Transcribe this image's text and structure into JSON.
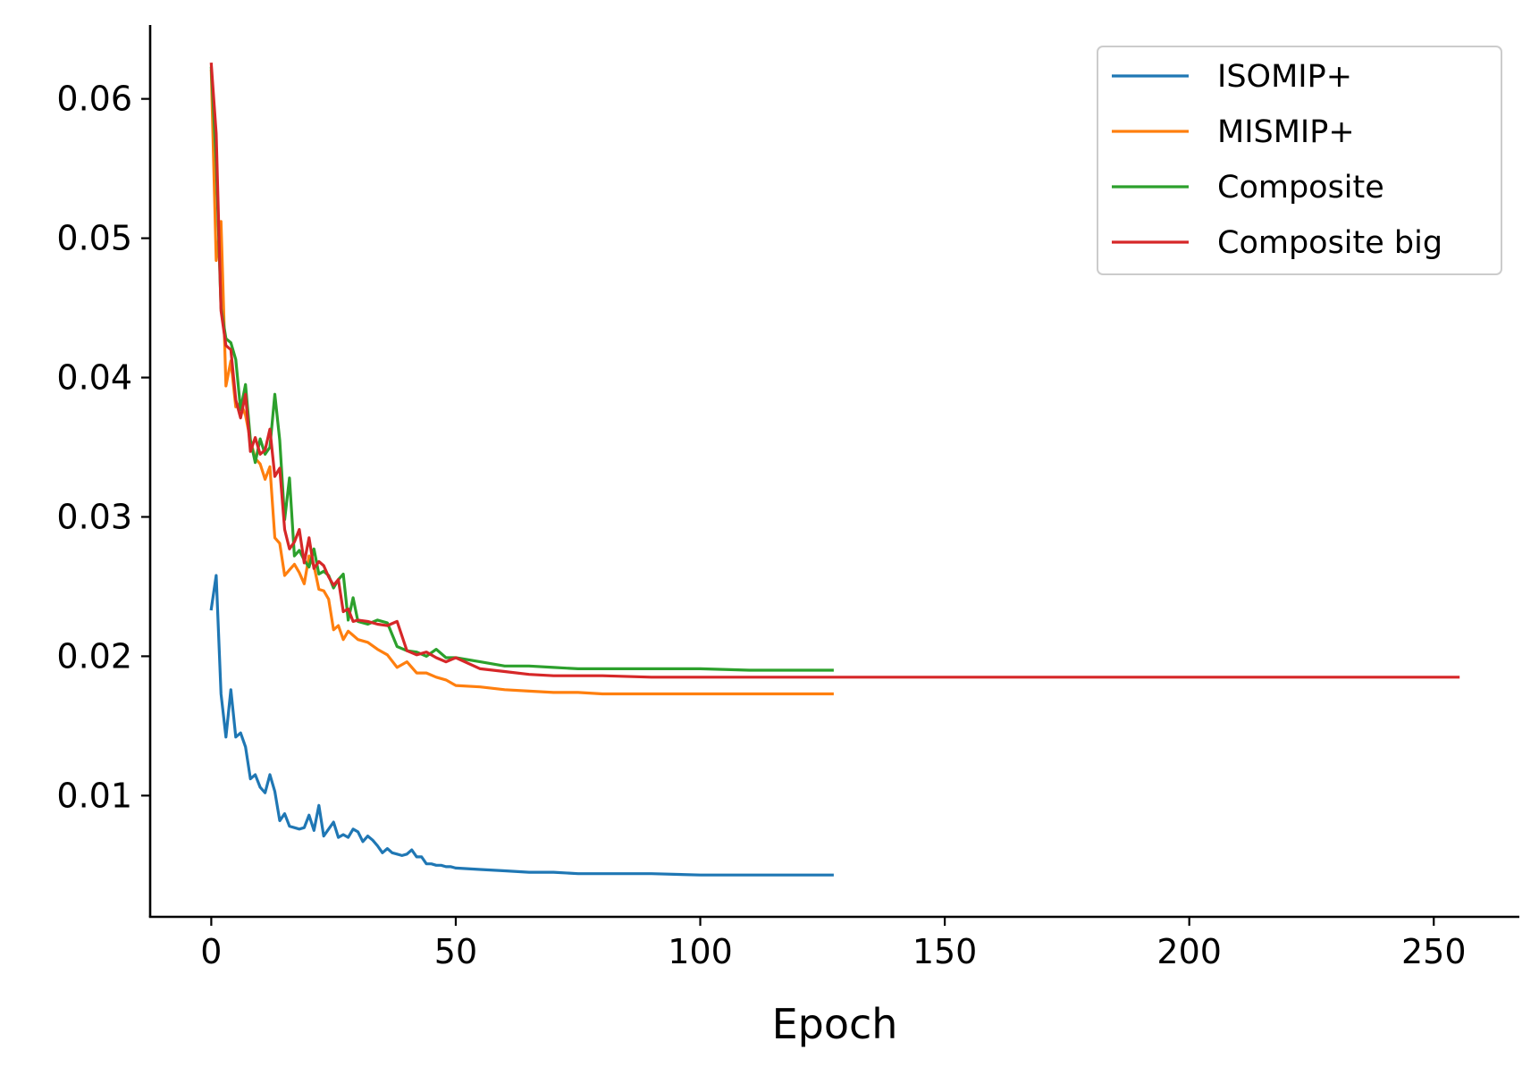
{
  "chart_data": {
    "type": "line",
    "title": "",
    "xlabel": "Epoch",
    "ylabel": "",
    "xlim": [
      -12.5,
      267.5
    ],
    "ylim": [
      0.0013,
      0.0653
    ],
    "xticks": [
      0,
      50,
      100,
      150,
      200,
      250
    ],
    "xtick_labels": [
      "0",
      "50",
      "100",
      "150",
      "200",
      "250"
    ],
    "yticks": [
      0.01,
      0.02,
      0.03,
      0.04,
      0.05,
      0.06
    ],
    "ytick_labels": [
      "0.01",
      "0.02",
      "0.03",
      "0.04",
      "0.05",
      "0.06"
    ],
    "grid": false,
    "legend_position": "top-right",
    "series": [
      {
        "name": "ISOMIP+",
        "color": "#1f77b4",
        "x": [
          0,
          1,
          2,
          3,
          4,
          5,
          6,
          7,
          8,
          9,
          10,
          11,
          12,
          13,
          14,
          15,
          16,
          17,
          18,
          19,
          20,
          21,
          22,
          23,
          24,
          25,
          26,
          27,
          28,
          29,
          30,
          31,
          32,
          33,
          34,
          35,
          36,
          37,
          38,
          39,
          40,
          41,
          42,
          43,
          44,
          45,
          46,
          47,
          48,
          49,
          50,
          55,
          60,
          65,
          70,
          75,
          80,
          90,
          100,
          110,
          120,
          127
        ],
        "y": [
          0.0234,
          0.0258,
          0.0173,
          0.0142,
          0.0176,
          0.0142,
          0.0145,
          0.0135,
          0.0112,
          0.0115,
          0.0106,
          0.0102,
          0.0115,
          0.0103,
          0.0082,
          0.0087,
          0.0078,
          0.0077,
          0.0076,
          0.0077,
          0.0086,
          0.0075,
          0.0093,
          0.0071,
          0.0076,
          0.0081,
          0.007,
          0.0072,
          0.007,
          0.0076,
          0.0074,
          0.0067,
          0.0071,
          0.0068,
          0.0064,
          0.0059,
          0.0062,
          0.0059,
          0.0058,
          0.0057,
          0.0058,
          0.0061,
          0.0056,
          0.0056,
          0.0051,
          0.0051,
          0.005,
          0.005,
          0.0049,
          0.0049,
          0.0048,
          0.0047,
          0.0046,
          0.0045,
          0.0045,
          0.0044,
          0.0044,
          0.0044,
          0.0043,
          0.0043,
          0.0043,
          0.0043
        ]
      },
      {
        "name": "MISMIP+",
        "color": "#ff7f0e",
        "x": [
          0,
          1,
          2,
          3,
          4,
          5,
          6,
          7,
          8,
          9,
          10,
          11,
          12,
          13,
          14,
          15,
          16,
          17,
          18,
          19,
          20,
          21,
          22,
          23,
          24,
          25,
          26,
          27,
          28,
          29,
          30,
          32,
          34,
          36,
          38,
          40,
          42,
          44,
          46,
          48,
          50,
          55,
          60,
          65,
          70,
          75,
          80,
          90,
          100,
          110,
          120,
          127
        ],
        "y": [
          0.062,
          0.0484,
          0.0512,
          0.0394,
          0.0412,
          0.0379,
          0.0382,
          0.0373,
          0.0355,
          0.0342,
          0.0338,
          0.0327,
          0.0336,
          0.0285,
          0.0281,
          0.0258,
          0.0262,
          0.0266,
          0.026,
          0.0252,
          0.0272,
          0.0265,
          0.0248,
          0.0247,
          0.0241,
          0.0219,
          0.0222,
          0.0212,
          0.0218,
          0.0215,
          0.0212,
          0.021,
          0.0205,
          0.0201,
          0.0192,
          0.0196,
          0.0188,
          0.0188,
          0.0185,
          0.0183,
          0.0179,
          0.0178,
          0.0176,
          0.0175,
          0.0174,
          0.0174,
          0.0173,
          0.0173,
          0.0173,
          0.0173,
          0.0173,
          0.0173
        ]
      },
      {
        "name": "Composite",
        "color": "#2ca02c",
        "x": [
          0,
          1,
          2,
          3,
          4,
          5,
          6,
          7,
          8,
          9,
          10,
          11,
          12,
          13,
          14,
          15,
          16,
          17,
          18,
          19,
          20,
          21,
          22,
          23,
          24,
          25,
          26,
          27,
          28,
          29,
          30,
          32,
          34,
          36,
          38,
          40,
          42,
          44,
          46,
          48,
          50,
          55,
          60,
          65,
          70,
          75,
          80,
          90,
          100,
          110,
          120,
          127
        ],
        "y": [
          0.0622,
          0.0555,
          0.045,
          0.0428,
          0.0425,
          0.0413,
          0.0377,
          0.0395,
          0.0355,
          0.0339,
          0.0356,
          0.0345,
          0.035,
          0.0388,
          0.0355,
          0.0298,
          0.0328,
          0.0272,
          0.0276,
          0.0269,
          0.0264,
          0.0277,
          0.0259,
          0.0261,
          0.0258,
          0.0249,
          0.0255,
          0.0259,
          0.0226,
          0.0242,
          0.0225,
          0.0223,
          0.0226,
          0.0224,
          0.0207,
          0.0204,
          0.0203,
          0.02,
          0.0205,
          0.0199,
          0.0199,
          0.0196,
          0.0193,
          0.0193,
          0.0192,
          0.0191,
          0.0191,
          0.0191,
          0.0191,
          0.019,
          0.019,
          0.019
        ]
      },
      {
        "name": "Composite big",
        "color": "#d62728",
        "x": [
          0,
          1,
          2,
          3,
          4,
          5,
          6,
          7,
          8,
          9,
          10,
          11,
          12,
          13,
          14,
          15,
          16,
          17,
          18,
          19,
          20,
          21,
          22,
          23,
          24,
          25,
          26,
          27,
          28,
          29,
          30,
          32,
          34,
          36,
          38,
          40,
          42,
          44,
          46,
          48,
          50,
          55,
          60,
          65,
          70,
          75,
          80,
          90,
          100,
          127,
          150,
          200,
          255
        ],
        "y": [
          0.0625,
          0.0575,
          0.0448,
          0.0423,
          0.042,
          0.0384,
          0.0371,
          0.0388,
          0.0347,
          0.0357,
          0.0345,
          0.0348,
          0.0363,
          0.0329,
          0.0335,
          0.0291,
          0.0277,
          0.0282,
          0.0291,
          0.0267,
          0.0285,
          0.0263,
          0.0268,
          0.0265,
          0.0257,
          0.0251,
          0.0255,
          0.0232,
          0.0234,
          0.0225,
          0.0226,
          0.0225,
          0.0223,
          0.0222,
          0.0225,
          0.0204,
          0.0201,
          0.0203,
          0.0199,
          0.0196,
          0.0199,
          0.0191,
          0.0189,
          0.0187,
          0.0186,
          0.0186,
          0.0186,
          0.0185,
          0.0185,
          0.0185,
          0.0185,
          0.0185,
          0.0185
        ]
      }
    ]
  }
}
